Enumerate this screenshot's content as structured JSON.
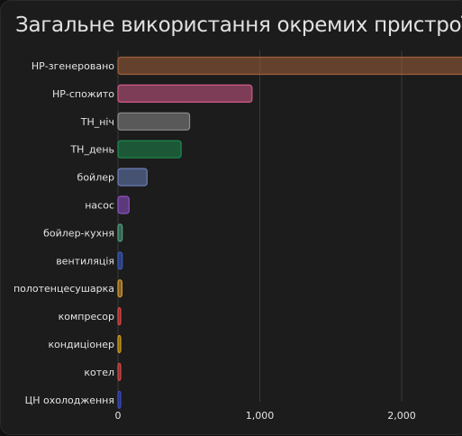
{
  "title": "Загальне використання окремих пристроїв",
  "chart_data": {
    "type": "bar",
    "orientation": "horizontal",
    "title": "Загальне використання окремих пристроїв",
    "categories": [
      "НР-згенеровано",
      "НР-спожито",
      "ТН_ніч",
      "ТН_день",
      "бойлер",
      "насос",
      "бойлер-кухня",
      "вентиляція",
      "полотенцесушарка",
      "компресор",
      "кондиціонер",
      "котел",
      "ЦН охолодження"
    ],
    "values": [
      2600,
      945,
      505,
      445,
      205,
      78,
      30,
      30,
      28,
      8,
      8,
      6,
      5
    ],
    "colors": [
      "#a0603c",
      "#d05a86",
      "#8c8c8c",
      "#1e8a4e",
      "#6a7fb8",
      "#8f52c8",
      "#4fa080",
      "#3c5cc0",
      "#d89a2c",
      "#e04848",
      "#d8a020",
      "#d84848",
      "#3a4cc0"
    ],
    "xlim": [
      0,
      2450
    ],
    "x_ticks": [
      0,
      1000,
      2000
    ],
    "x_tick_labels": [
      "0",
      "1,000",
      "2,000"
    ],
    "grid": true,
    "xlabel": "",
    "ylabel": ""
  }
}
